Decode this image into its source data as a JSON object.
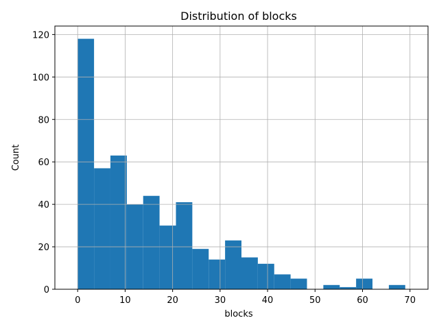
{
  "chart_data": {
    "type": "bar",
    "title": "Distribution of blocks",
    "xlabel": "blocks",
    "ylabel": "Count",
    "grid": true,
    "bar_color": "#1f77b4",
    "bin_edges": [
      0,
      3.45,
      6.9,
      10.35,
      13.8,
      17.25,
      20.7,
      24.15,
      27.6,
      31.05,
      34.5,
      37.95,
      41.4,
      44.85,
      48.3,
      51.75,
      55.2,
      58.65,
      62.1,
      65.55,
      69
    ],
    "values": [
      118,
      57,
      63,
      40,
      44,
      30,
      41,
      19,
      14,
      23,
      15,
      12,
      7,
      5,
      0,
      2,
      1,
      5,
      0,
      2
    ],
    "xlim": [
      -4.8,
      73.8
    ],
    "ylim": [
      0,
      124
    ],
    "xticks": [
      0,
      10,
      20,
      30,
      40,
      50,
      60,
      70
    ],
    "yticks": [
      0,
      20,
      40,
      60,
      80,
      100,
      120
    ]
  }
}
